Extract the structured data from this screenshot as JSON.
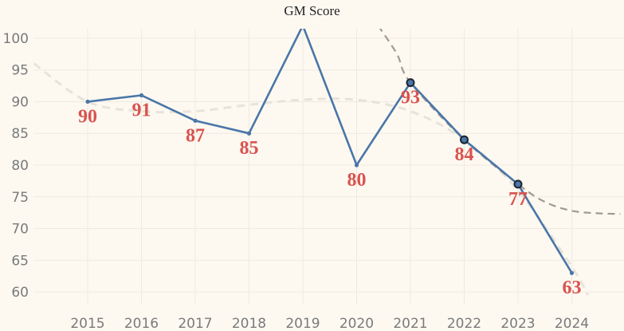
{
  "chart_data": {
    "type": "line",
    "title": "GM Score",
    "xlabel": "",
    "ylabel": "",
    "x": [
      "2015",
      "2016",
      "2017",
      "2018",
      "2019",
      "2020",
      "2021",
      "2022",
      "2023",
      "2024"
    ],
    "y_ticks": [
      60,
      65,
      70,
      75,
      80,
      85,
      90,
      95,
      100
    ],
    "ylim": [
      58,
      101.5
    ],
    "grid": true,
    "series": [
      {
        "name": "",
        "values": [
          90,
          91,
          87,
          85,
          102,
          80,
          93,
          84,
          77,
          63
        ],
        "labels": [
          "90",
          "91",
          "87",
          "85",
          "",
          "80",
          "93",
          "84",
          "77",
          "63"
        ],
        "highlighted": [
          "2021",
          "2022",
          "2023"
        ]
      }
    ],
    "trend_lines": [
      {
        "style": "dashed-light",
        "points": [
          [
            2014,
            96
          ],
          [
            2015,
            90
          ],
          [
            2016,
            88.5
          ],
          [
            2017,
            88.5
          ],
          [
            2018,
            89.5
          ],
          [
            2019,
            90.3
          ],
          [
            2020,
            90.3
          ],
          [
            2021,
            88.5
          ],
          [
            2022,
            84
          ],
          [
            2023,
            76
          ],
          [
            2024,
            64
          ],
          [
            2024.3,
            59.5
          ]
        ]
      },
      {
        "style": "dashed-dark",
        "points": [
          [
            2020.4,
            102
          ],
          [
            2020.75,
            97.5
          ],
          [
            2021,
            93
          ],
          [
            2022,
            84
          ],
          [
            2023,
            77
          ],
          [
            2023.5,
            74.2
          ],
          [
            2024,
            72.8
          ],
          [
            2024.5,
            72.4
          ],
          [
            2024.9,
            72.3
          ]
        ]
      }
    ],
    "colors": {
      "line": "#4a76a8",
      "label": "#d9534f",
      "trend_light": "#e8e3da",
      "trend_dark": "#a09a90",
      "background": "#fdf9f1",
      "grid": "#eeeae2",
      "marker_edge": "#1c2430"
    }
  }
}
